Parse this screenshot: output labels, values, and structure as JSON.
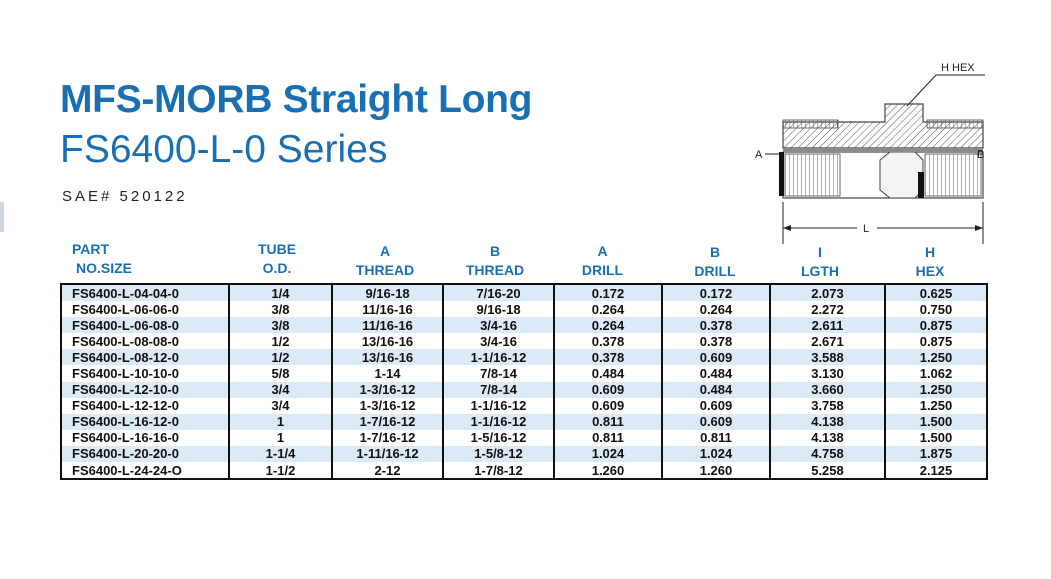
{
  "title": "MFS-MORB Straight Long",
  "subtitle": "FS6400-L-0 Series",
  "sae": "SAE# 520122",
  "diagram": {
    "hex_label": "H HEX",
    "a_label": "A",
    "b_label": "B",
    "l_label": "L"
  },
  "headers": [
    {
      "line1": "PART",
      "line2": "NO.SIZE"
    },
    {
      "line1": "TUBE",
      "line2": "O.D."
    },
    {
      "line1": "A",
      "line2": "THREAD"
    },
    {
      "line1": "B",
      "line2": "THREAD"
    },
    {
      "line1": "A",
      "line2": "DRILL"
    },
    {
      "line1": "B",
      "line2": "DRILL"
    },
    {
      "line1": "I",
      "line2": "LGTH"
    },
    {
      "line1": "H",
      "line2": "HEX"
    }
  ],
  "rows": [
    [
      "FS6400-L-04-04-0",
      "1/4",
      "9/16-18",
      "7/16-20",
      "0.172",
      "0.172",
      "2.073",
      "0.625"
    ],
    [
      "FS6400-L-06-06-0",
      "3/8",
      "11/16-16",
      "9/16-18",
      "0.264",
      "0.264",
      "2.272",
      "0.750"
    ],
    [
      "FS6400-L-06-08-0",
      "3/8",
      "11/16-16",
      "3/4-16",
      "0.264",
      "0.378",
      "2.611",
      "0.875"
    ],
    [
      "FS6400-L-08-08-0",
      "1/2",
      "13/16-16",
      "3/4-16",
      "0.378",
      "0.378",
      "2.671",
      "0.875"
    ],
    [
      "FS6400-L-08-12-0",
      "1/2",
      "13/16-16",
      "1-1/16-12",
      "0.378",
      "0.609",
      "3.588",
      "1.250"
    ],
    [
      "FS6400-L-10-10-0",
      "5/8",
      "1-14",
      "7/8-14",
      "0.484",
      "0.484",
      "3.130",
      "1.062"
    ],
    [
      "FS6400-L-12-10-0",
      "3/4",
      "1-3/16-12",
      "7/8-14",
      "0.609",
      "0.484",
      "3.660",
      "1.250"
    ],
    [
      "FS6400-L-12-12-0",
      "3/4",
      "1-3/16-12",
      "1-1/16-12",
      "0.609",
      "0.609",
      "3.758",
      "1.250"
    ],
    [
      "FS6400-L-16-12-0",
      "1",
      "1-7/16-12",
      "1-1/16-12",
      "0.811",
      "0.609",
      "4.138",
      "1.500"
    ],
    [
      "FS6400-L-16-16-0",
      "1",
      "1-7/16-12",
      "1-5/16-12",
      "0.811",
      "0.811",
      "4.138",
      "1.500"
    ],
    [
      "FS6400-L-20-20-0",
      "1-1/4",
      "1-11/16-12",
      "1-5/8-12",
      "1.024",
      "1.024",
      "4.758",
      "1.875"
    ],
    [
      "FS6400-L-24-24-O",
      "1-1/2",
      "2-12",
      "1-7/8-12",
      "1.260",
      "1.260",
      "5.258",
      "2.125"
    ]
  ]
}
